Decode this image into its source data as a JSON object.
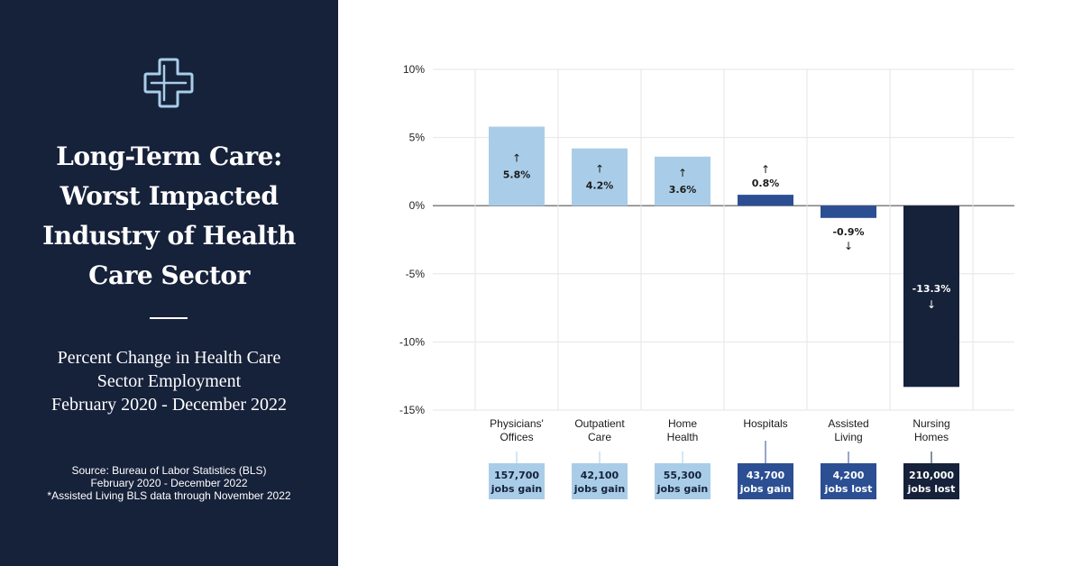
{
  "sidebar": {
    "title_lines": [
      "Long-Term Care:",
      "Worst Impacted",
      "Industry of Health",
      "Care Sector"
    ],
    "subtitle_lines": [
      "Percent Change in Health Care",
      "Sector Employment",
      "February 2020 - December 2022"
    ],
    "source_lines": [
      "Source: Bureau of Labor Statistics (BLS)",
      "February 2020 - December 2022",
      "*Assisted Living BLS data through November 2022"
    ],
    "logo_icon": "medical-cross-icon"
  },
  "colors": {
    "sidebar_bg": "#16213a",
    "light_blue": "#a9cde8",
    "mid_blue": "#2c4f93",
    "navy": "#16213a",
    "grid": "#e6e6e6"
  },
  "chart_data": {
    "type": "bar",
    "categories": [
      [
        "Physicians'",
        "Offices"
      ],
      [
        "Outpatient",
        "Care"
      ],
      [
        "Home",
        "Health"
      ],
      [
        "Hospitals"
      ],
      [
        "Assisted",
        "Living"
      ],
      [
        "Nursing",
        "Homes"
      ]
    ],
    "values": [
      5.8,
      4.2,
      3.6,
      0.8,
      -0.9,
      -13.3
    ],
    "value_labels": [
      "5.8%",
      "4.2%",
      "3.6%",
      "0.8%",
      "-0.9%",
      "-13.3%"
    ],
    "bar_colors": [
      "#a9cde8",
      "#a9cde8",
      "#a9cde8",
      "#2c4f93",
      "#2c4f93",
      "#16213a"
    ],
    "jobs_counts": [
      "157,700",
      "42,100",
      "55,300",
      "43,700",
      "4,200",
      "210,000"
    ],
    "jobs_text": [
      "jobs gain",
      "jobs gain",
      "jobs gain",
      "jobs gain",
      "jobs lost",
      "jobs lost"
    ],
    "y_ticks": [
      "10%",
      "5%",
      "0%",
      "-5%",
      "-10%",
      "-15%"
    ],
    "y_tick_values": [
      10,
      5,
      0,
      -5,
      -10,
      -15
    ],
    "ylim": [
      -15,
      10
    ],
    "grid": true,
    "arrow_up": "↑",
    "arrow_down": "↓"
  }
}
